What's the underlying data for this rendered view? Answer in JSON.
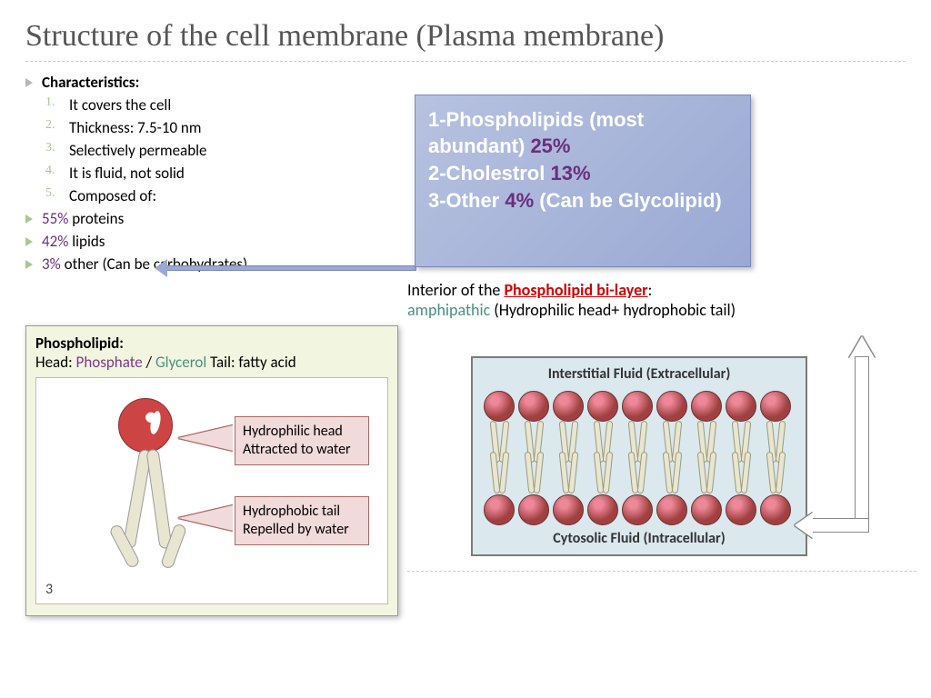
{
  "title": {
    "text": "Structure of the cell membrane (Plasma membrane)",
    "color": "#555555",
    "fontsize": 34
  },
  "characteristics": {
    "heading": "Characteristics:",
    "items": [
      "It covers the cell",
      "Thickness: 7.5-10 nm",
      "Selectively permeable",
      "It is fluid, not solid",
      "Composed of:"
    ],
    "composition": [
      {
        "pct": "55%",
        "label": " proteins"
      },
      {
        "pct": "42%",
        "label": " lipids"
      },
      {
        "pct": "3%",
        "label": " other (Can be carbohydrates)"
      }
    ]
  },
  "lipid_box": {
    "bg_gradient": [
      "#b7c2e0",
      "#9aa9d4"
    ],
    "text_color": "#ffffff",
    "pct_color": "#6b2e7a",
    "fontsize": 22,
    "lines": [
      {
        "pre": "1-Phospholipids (most abundant) ",
        "pct": "25%",
        "post": ""
      },
      {
        "pre": "2-Cholestrol ",
        "pct": "13%",
        "post": ""
      },
      {
        "pre": "3-Other ",
        "pct": "4%",
        "post": " (Can be Glycolipid)"
      }
    ]
  },
  "interior": {
    "prefix": "Interior of the ",
    "link_text": "Phospholipid bi-layer",
    "link_color": "#d40000",
    "suffix": ": ",
    "amphi_text": "amphipathic",
    "amphi_color": "#4a9080",
    "tail": " (Hydrophilic head+ hydrophobic tail)"
  },
  "phospholipid_panel": {
    "bg": "#f2f5e0",
    "title": "Phospholipid:",
    "subtitle": {
      "head": "Head: ",
      "phosphate": "Phosphate",
      "sep": " / ",
      "glycerol": "Glycerol",
      "tail_label": "    Tail: fatty acid"
    },
    "diagram": {
      "head_color": "#c44444",
      "tail_color": "#e8e6d0",
      "callout1": "Hydrophilic head\nAttracted to water",
      "callout2": "Hydrophobic tail\nRepelled by water",
      "callout_bg": "#f0dada",
      "page_num": "3"
    }
  },
  "bilayer": {
    "bg": "#dbe8ee",
    "top_label": "Interstitial Fluid  (Extracellular)",
    "bottom_label": "Cytosolic Fluid  (Intracellular)",
    "ball_color": "#a04040",
    "tail_color": "#e8e6d0",
    "count": 9
  },
  "colors": {
    "title": "#555555",
    "bullet_gray": "#b7b7b7",
    "bullet_green": "#a8c893",
    "pct_purple": "#6b2e7a",
    "dash": "#cccccc"
  }
}
